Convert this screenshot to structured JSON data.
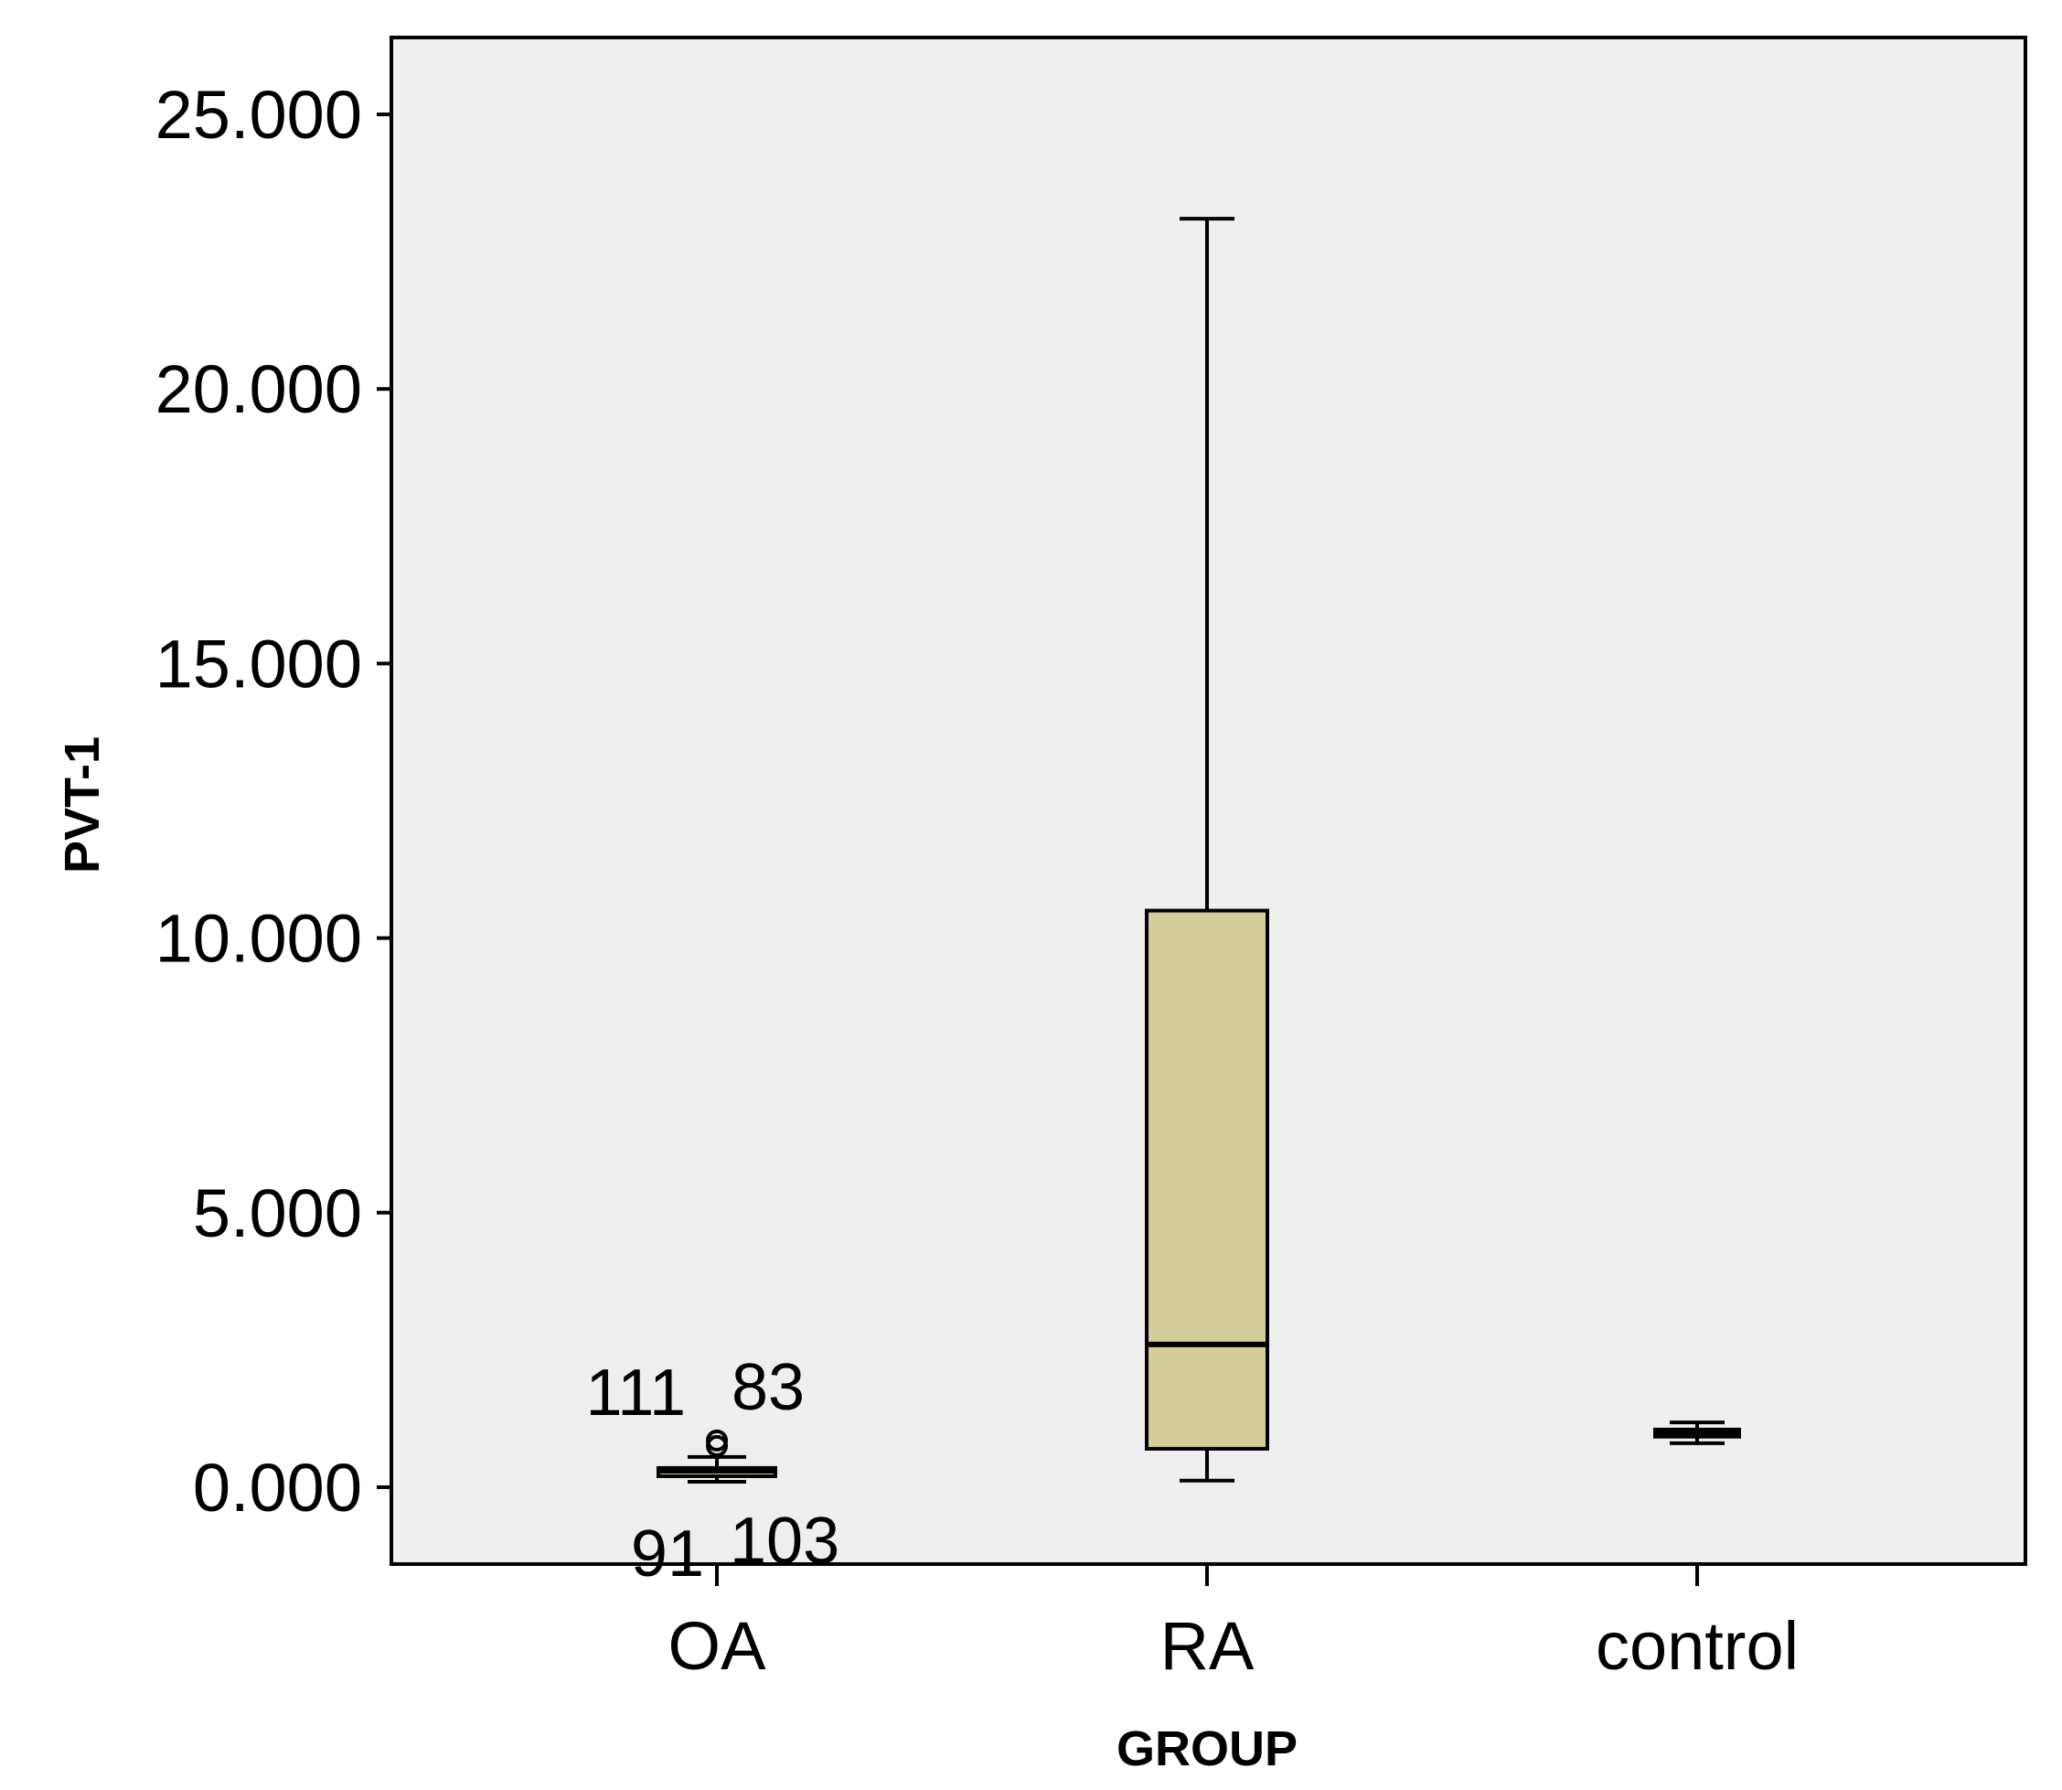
{
  "chart_data": {
    "type": "boxplot",
    "xlabel": "GROUP",
    "ylabel": "PVT-1",
    "ylim": [
      -1.4,
      26.4
    ],
    "yticks": [
      0,
      5,
      10,
      15,
      20,
      25
    ],
    "ytick_labels": [
      "0.000",
      "5.000",
      "10.000",
      "15.000",
      "20.000",
      "25.000"
    ],
    "categories": [
      "OA",
      "RA",
      "control"
    ],
    "boxes": [
      {
        "category": "OA",
        "whisker_low": 0.1,
        "q1": 0.2,
        "median": 0.3,
        "q3": 0.35,
        "whisker_high": 0.55
      },
      {
        "category": "RA",
        "whisker_low": 0.12,
        "q1": 0.7,
        "median": 2.6,
        "q3": 10.5,
        "whisker_high": 23.1
      },
      {
        "category": "control",
        "whisker_low": 0.8,
        "q1": 0.92,
        "median": 1.0,
        "q3": 1.05,
        "whisker_high": 1.18
      }
    ],
    "outliers": [
      {
        "category": "OA",
        "value": 0.85,
        "label": "111"
      },
      {
        "category": "OA",
        "value": 0.75,
        "label": "83"
      },
      {
        "category": "OA",
        "value": 0.05,
        "label": "91"
      },
      {
        "category": "OA",
        "value": 0.05,
        "label": "103"
      }
    ],
    "colors": {
      "plot_background": "#efefef",
      "box_fill": "#d4cf99",
      "stroke": "#000000"
    },
    "grid": false
  }
}
